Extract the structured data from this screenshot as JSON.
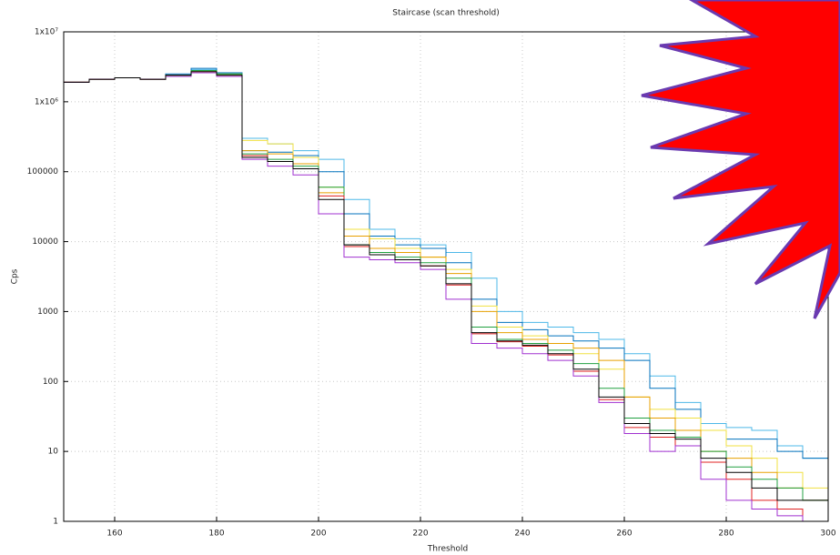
{
  "chart_data": {
    "type": "step",
    "title": "Staircase (scan threshold)",
    "x_label": "Threshold",
    "y_label": "Cps",
    "log_y": true,
    "grid": true,
    "xlim": [
      150,
      300
    ],
    "xticks": [
      160,
      180,
      200,
      220,
      240,
      260,
      280,
      300
    ],
    "ylim": [
      1,
      10000000
    ],
    "yticks": [
      1,
      10,
      100,
      1000,
      10000,
      100000,
      {
        "value": 1000000,
        "label": "1x10⁶"
      },
      {
        "value": 10000000,
        "label": "1x10⁷"
      }
    ],
    "x": [
      150,
      155,
      160,
      165,
      170,
      175,
      180,
      185,
      190,
      195,
      200,
      205,
      210,
      215,
      220,
      225,
      230,
      235,
      240,
      245,
      250,
      255,
      260,
      265,
      270,
      275,
      280,
      285,
      290,
      295,
      300
    ],
    "series": [
      {
        "color": "#4db8e8",
        "values": [
          1900000,
          2100000,
          2200000,
          2100000,
          2400000,
          2900000,
          2500000,
          300000,
          250000,
          200000,
          150000,
          40000,
          15000,
          11000,
          9000,
          7000,
          3000,
          1000,
          700,
          600,
          500,
          400,
          250,
          120,
          50,
          25,
          22,
          20,
          12,
          8,
          5
        ]
      },
      {
        "color": "#0072bd",
        "values": [
          1900000,
          2100000,
          2200000,
          2100000,
          2500000,
          3000000,
          2600000,
          200000,
          190000,
          170000,
          100000,
          25000,
          12000,
          9000,
          8000,
          5000,
          1500,
          700,
          550,
          450,
          380,
          300,
          200,
          80,
          40,
          20,
          15,
          15,
          10,
          8,
          4
        ]
      },
      {
        "color": "#f0e040",
        "values": [
          1900000,
          2100000,
          2200000,
          2100000,
          2400000,
          2800000,
          2500000,
          280000,
          250000,
          160000,
          60000,
          15000,
          11000,
          8000,
          6000,
          4000,
          1200,
          600,
          450,
          350,
          250,
          150,
          60,
          40,
          30,
          20,
          12,
          8,
          5,
          3,
          3
        ]
      },
      {
        "color": "#e8a000",
        "values": [
          1900000,
          2100000,
          2200000,
          2100000,
          2400000,
          2700000,
          2400000,
          200000,
          180000,
          130000,
          50000,
          12000,
          8000,
          7000,
          6000,
          3500,
          1000,
          500,
          400,
          350,
          300,
          200,
          60,
          30,
          20,
          10,
          8,
          5,
          3,
          2,
          2
        ]
      },
      {
        "color": "#20a040",
        "values": [
          1900000,
          2100000,
          2200000,
          2100000,
          2400000,
          2800000,
          2500000,
          180000,
          150000,
          120000,
          60000,
          9000,
          7000,
          6000,
          5000,
          3000,
          600,
          400,
          350,
          280,
          180,
          80,
          30,
          20,
          16,
          10,
          6,
          4,
          3,
          2,
          2
        ]
      },
      {
        "color": "#e02020",
        "values": [
          1900000,
          2100000,
          2200000,
          2100000,
          2300000,
          2600000,
          2300000,
          170000,
          140000,
          110000,
          45000,
          8500,
          6500,
          5500,
          4500,
          2400,
          480,
          370,
          320,
          240,
          140,
          55,
          22,
          16,
          12,
          7,
          4,
          2,
          1.5,
          1,
          1
        ]
      },
      {
        "color": "#a030d0",
        "values": [
          1900000,
          2100000,
          2200000,
          2100000,
          2300000,
          2600000,
          2300000,
          150000,
          120000,
          90000,
          25000,
          6000,
          5500,
          5000,
          4000,
          1500,
          350,
          300,
          250,
          200,
          120,
          50,
          18,
          10,
          12,
          4,
          2,
          1.5,
          1.2,
          1,
          1
        ]
      },
      {
        "color": "#000000",
        "values": [
          1900000,
          2100000,
          2200000,
          2100000,
          2400000,
          2700000,
          2400000,
          160000,
          140000,
          110000,
          40000,
          9000,
          6500,
          5500,
          4500,
          2500,
          500,
          380,
          330,
          250,
          150,
          60,
          25,
          18,
          15,
          8,
          5,
          3,
          2,
          2,
          1.5
        ]
      }
    ]
  }
}
